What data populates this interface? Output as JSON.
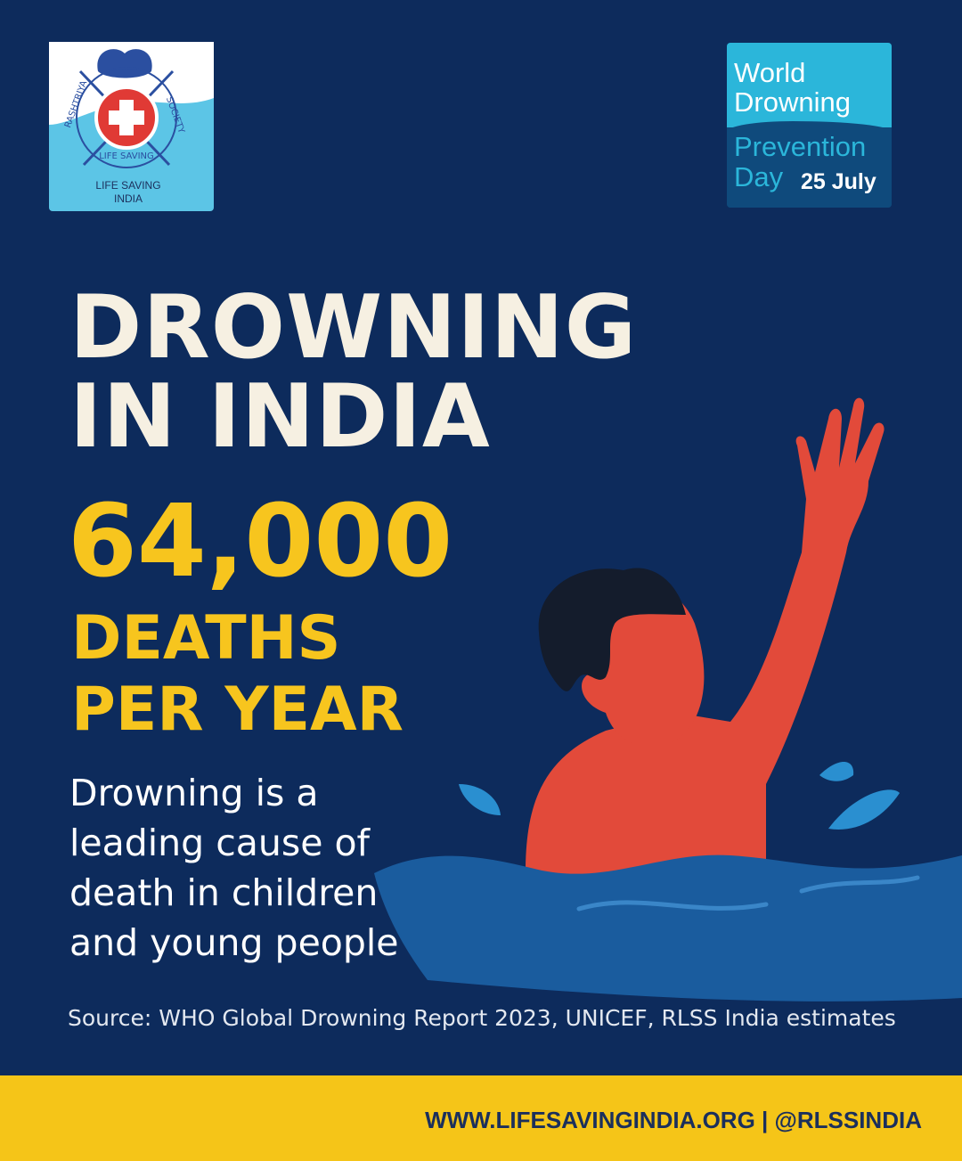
{
  "logo": {
    "ring_left": "RASHTRIYA",
    "ring_bottom": "LIFE SAVING",
    "ring_right": "SOCIETY",
    "caption_lines": [
      "LIFE SAVING",
      "INDIA"
    ]
  },
  "badge": {
    "lines": [
      "World",
      "Drowning",
      "Prevention",
      "Day"
    ],
    "date": "25 July"
  },
  "headline": {
    "lines": [
      "DROWNING",
      "IN INDIA"
    ]
  },
  "stat": {
    "number": "64,000",
    "label_lines": [
      "DEATHS",
      "PER YEAR"
    ]
  },
  "body_lines": [
    "Drowning is a",
    "leading cause of",
    "death in children",
    "and young people"
  ],
  "source": "Source: WHO Global Drowning Report 2023, UNICEF, RLSS India estimates",
  "footer": "WWW.LIFESAVINGINDIA.ORG | @RLSSINDIA"
}
